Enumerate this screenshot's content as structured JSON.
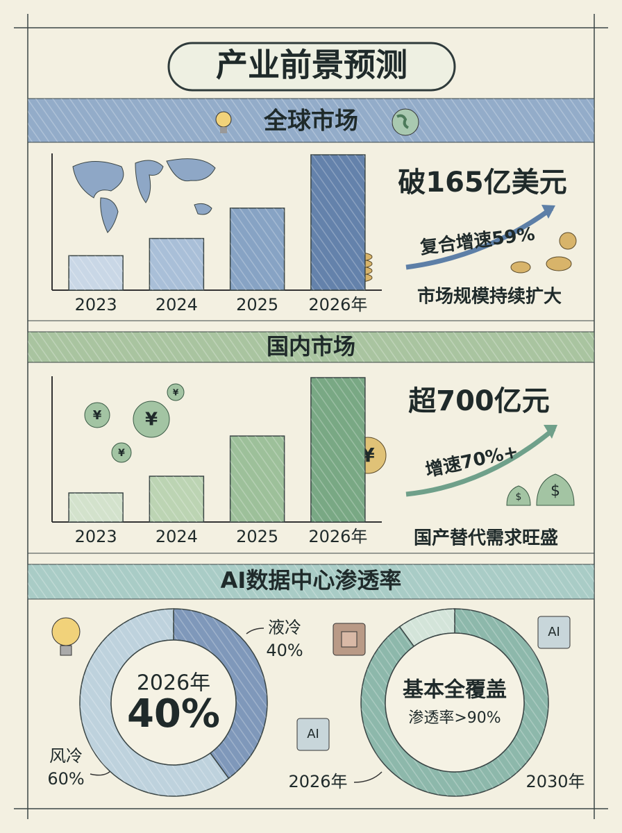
{
  "title": "产业前景预测",
  "symbols": {
    "yen": "¥",
    "dollar": "$",
    "chip": "AI"
  },
  "chart_data": [
    {
      "type": "bar",
      "title": "全球市场",
      "categories": [
        "2023",
        "2024",
        "2025",
        "2026年"
      ],
      "values": [
        42,
        63,
        100,
        165
      ],
      "colors": [
        "#c9d7e6",
        "#a9bfd8",
        "#87a3c4",
        "#6482ab"
      ],
      "ylim": [
        0,
        165
      ],
      "headline": "破165亿美元",
      "growth": "复合增速59%",
      "caption": "市场规模持续扩大"
    },
    {
      "type": "bar",
      "title": "国内市场",
      "categories": [
        "2023",
        "2024",
        "2025",
        "2026年"
      ],
      "values": [
        141,
        222,
        417,
        700
      ],
      "colors": [
        "#d3e2cc",
        "#bcd4b3",
        "#9dc09a",
        "#79a884"
      ],
      "ylim": [
        0,
        700
      ],
      "headline": "超700亿元",
      "growth": "增速70%+",
      "caption": "国产替代需求旺盛"
    },
    {
      "type": "donut",
      "title": "AI数据中心渗透率",
      "center": [
        "2026年",
        "40%"
      ],
      "categories": [
        "液冷",
        "风冷"
      ],
      "values": [
        40,
        60
      ],
      "value_labels": [
        "40%",
        "60%"
      ],
      "colors": [
        "#7f98ba",
        "#bed2dd"
      ]
    },
    {
      "type": "donut",
      "center": [
        "基本全覆盖",
        "渗透率>90%"
      ],
      "values": [
        90,
        10
      ],
      "colors": [
        "#8db8ab",
        "#d3e4d9"
      ],
      "annotations": [
        "2026年",
        "2030年"
      ]
    }
  ]
}
